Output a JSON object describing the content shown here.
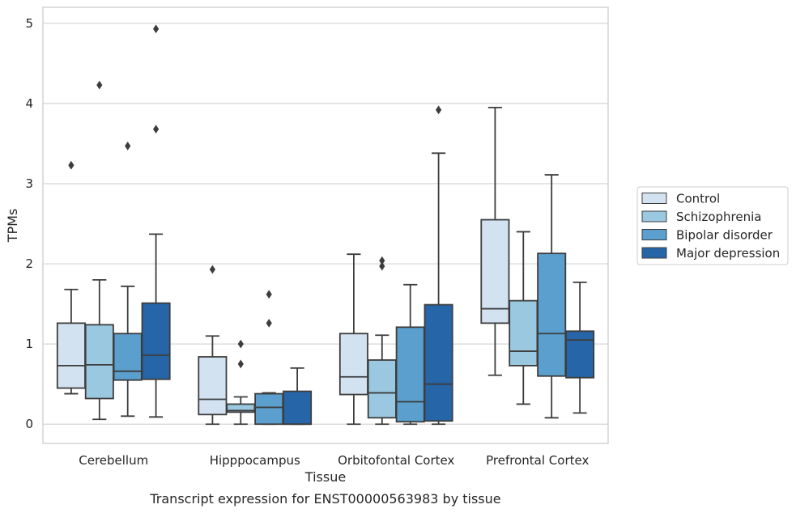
{
  "caption": "Transcript expression for ENST00000563983 by tissue",
  "chart_data": {
    "type": "box",
    "xlabel": "Tissue",
    "ylabel": "TPMs",
    "ylim": [
      -0.24,
      5.2
    ],
    "yticks": [
      0,
      1,
      2,
      3,
      4,
      5
    ],
    "grid": "horizontal",
    "legend_position": "right",
    "categories": [
      "Cerebellum",
      "Hipppocampus",
      "Orbitofontal Cortex",
      "Prefrontal Cortex"
    ],
    "series": [
      {
        "name": "Control",
        "color": "#d2e2f1",
        "boxes": [
          {
            "whislo": 0.38,
            "q1": 0.45,
            "med": 0.73,
            "q3": 1.26,
            "whishi": 1.68,
            "fliers": [
              3.23
            ]
          },
          {
            "whislo": 0.0,
            "q1": 0.12,
            "med": 0.31,
            "q3": 0.84,
            "whishi": 1.1,
            "fliers": [
              1.93
            ]
          },
          {
            "whislo": 0.0,
            "q1": 0.37,
            "med": 0.59,
            "q3": 1.13,
            "whishi": 2.12,
            "fliers": []
          },
          {
            "whislo": 0.61,
            "q1": 1.26,
            "med": 1.44,
            "q3": 2.55,
            "whishi": 3.95,
            "fliers": []
          }
        ]
      },
      {
        "name": "Schizophrenia",
        "color": "#9ac8e0",
        "boxes": [
          {
            "whislo": 0.06,
            "q1": 0.32,
            "med": 0.74,
            "q3": 1.24,
            "whishi": 1.8,
            "fliers": [
              4.23
            ]
          },
          {
            "whislo": 0.0,
            "q1": 0.15,
            "med": 0.17,
            "q3": 0.25,
            "whishi": 0.34,
            "fliers": [
              0.75,
              1.0
            ]
          },
          {
            "whislo": 0.0,
            "q1": 0.08,
            "med": 0.39,
            "q3": 0.8,
            "whishi": 1.11,
            "fliers": [
              1.97,
              2.04
            ]
          },
          {
            "whislo": 0.25,
            "q1": 0.73,
            "med": 0.91,
            "q3": 1.54,
            "whishi": 2.4,
            "fliers": []
          }
        ]
      },
      {
        "name": "Bipolar disorder",
        "color": "#5a9fcd",
        "boxes": [
          {
            "whislo": 0.1,
            "q1": 0.55,
            "med": 0.66,
            "q3": 1.13,
            "whishi": 1.72,
            "fliers": [
              3.47
            ]
          },
          {
            "whislo": 0.0,
            "q1": 0.0,
            "med": 0.21,
            "q3": 0.38,
            "whishi": 0.39,
            "fliers": [
              1.26,
              1.62
            ]
          },
          {
            "whislo": 0.0,
            "q1": 0.03,
            "med": 0.28,
            "q3": 1.21,
            "whishi": 1.74,
            "fliers": []
          },
          {
            "whislo": 0.08,
            "q1": 0.6,
            "med": 1.13,
            "q3": 2.13,
            "whishi": 3.11,
            "fliers": []
          }
        ]
      },
      {
        "name": "Major depression",
        "color": "#2565a8",
        "boxes": [
          {
            "whislo": 0.09,
            "q1": 0.56,
            "med": 0.86,
            "q3": 1.51,
            "whishi": 2.37,
            "fliers": [
              3.68,
              4.93
            ]
          },
          {
            "whislo": 0.0,
            "q1": 0.0,
            "med": 0.0,
            "q3": 0.41,
            "whishi": 0.7,
            "fliers": []
          },
          {
            "whislo": 0.0,
            "q1": 0.04,
            "med": 0.5,
            "q3": 1.49,
            "whishi": 3.38,
            "fliers": [
              3.92
            ]
          },
          {
            "whislo": 0.14,
            "q1": 0.58,
            "med": 1.05,
            "q3": 1.16,
            "whishi": 1.77,
            "fliers": []
          }
        ]
      }
    ]
  }
}
